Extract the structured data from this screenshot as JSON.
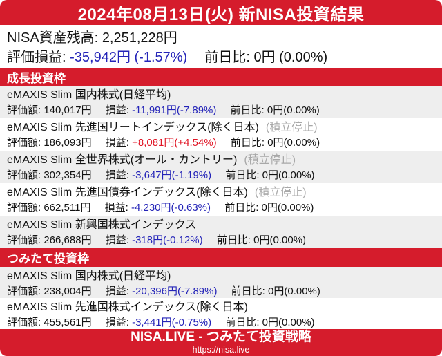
{
  "colors": {
    "brand_red": "#d51c2c",
    "loss_blue": "#2424b8",
    "gain_red": "#e01525",
    "row_alt_bg": "#eeeeee",
    "muted_gray": "#a8a8a8"
  },
  "header": {
    "title": "2024年08月13日(火) 新NISA投資結果"
  },
  "summary": {
    "balance_label": "NISA資産残高:",
    "balance_value": "2,251,228円",
    "pl_label": "評価損益:",
    "pl_value": "-35,942円 (-1.57%)",
    "pl_trend": "down",
    "dod_label": "前日比:",
    "dod_value": "0円 (0.00%)"
  },
  "labels": {
    "eval": "評価額:",
    "pl": "損益:",
    "dod": "前日比:"
  },
  "sections": [
    {
      "title": "成長投資枠",
      "funds": [
        {
          "name": "eMAXIS Slim 国内株式(日経平均)",
          "eval_value": "140,017円",
          "pl_value": "-11,991円(-7.89%)",
          "trend": "down",
          "dod_value": "0円(0.00%)"
        },
        {
          "name": "eMAXIS Slim 先進国リートインデックス(除く日本)",
          "suspended": "(積立停止)",
          "eval_value": "186,093円",
          "pl_value": "+8,081円(+4.54%)",
          "trend": "up",
          "dod_value": "0円(0.00%)"
        },
        {
          "name": "eMAXIS Slim 全世界株式(オール・カントリー)",
          "suspended": "(積立停止)",
          "eval_value": "302,354円",
          "pl_value": "-3,647円(-1.19%)",
          "trend": "down",
          "dod_value": "0円(0.00%)"
        },
        {
          "name": "eMAXIS Slim 先進国債券インデックス(除く日本)",
          "suspended": "(積立停止)",
          "eval_value": "662,511円",
          "pl_value": "-4,230円(-0.63%)",
          "trend": "down",
          "dod_value": "0円(0.00%)"
        },
        {
          "name": "eMAXIS Slim 新興国株式インデックス",
          "eval_value": "266,688円",
          "pl_value": "-318円(-0.12%)",
          "trend": "down",
          "dod_value": "0円(0.00%)"
        }
      ]
    },
    {
      "title": "つみたて投資枠",
      "funds": [
        {
          "name": "eMAXIS Slim 国内株式(日経平均)",
          "eval_value": "238,004円",
          "pl_value": "-20,396円(-7.89%)",
          "trend": "down",
          "dod_value": "0円(0.00%)"
        },
        {
          "name": "eMAXIS Slim 先進国株式インデックス(除く日本)",
          "eval_value": "455,561円",
          "pl_value": "-3,441円(-0.75%)",
          "trend": "down",
          "dod_value": "0円(0.00%)"
        }
      ]
    }
  ],
  "footer": {
    "title": "NISA.LIVE - つみたて投資戦略",
    "url": "https://nisa.live"
  }
}
